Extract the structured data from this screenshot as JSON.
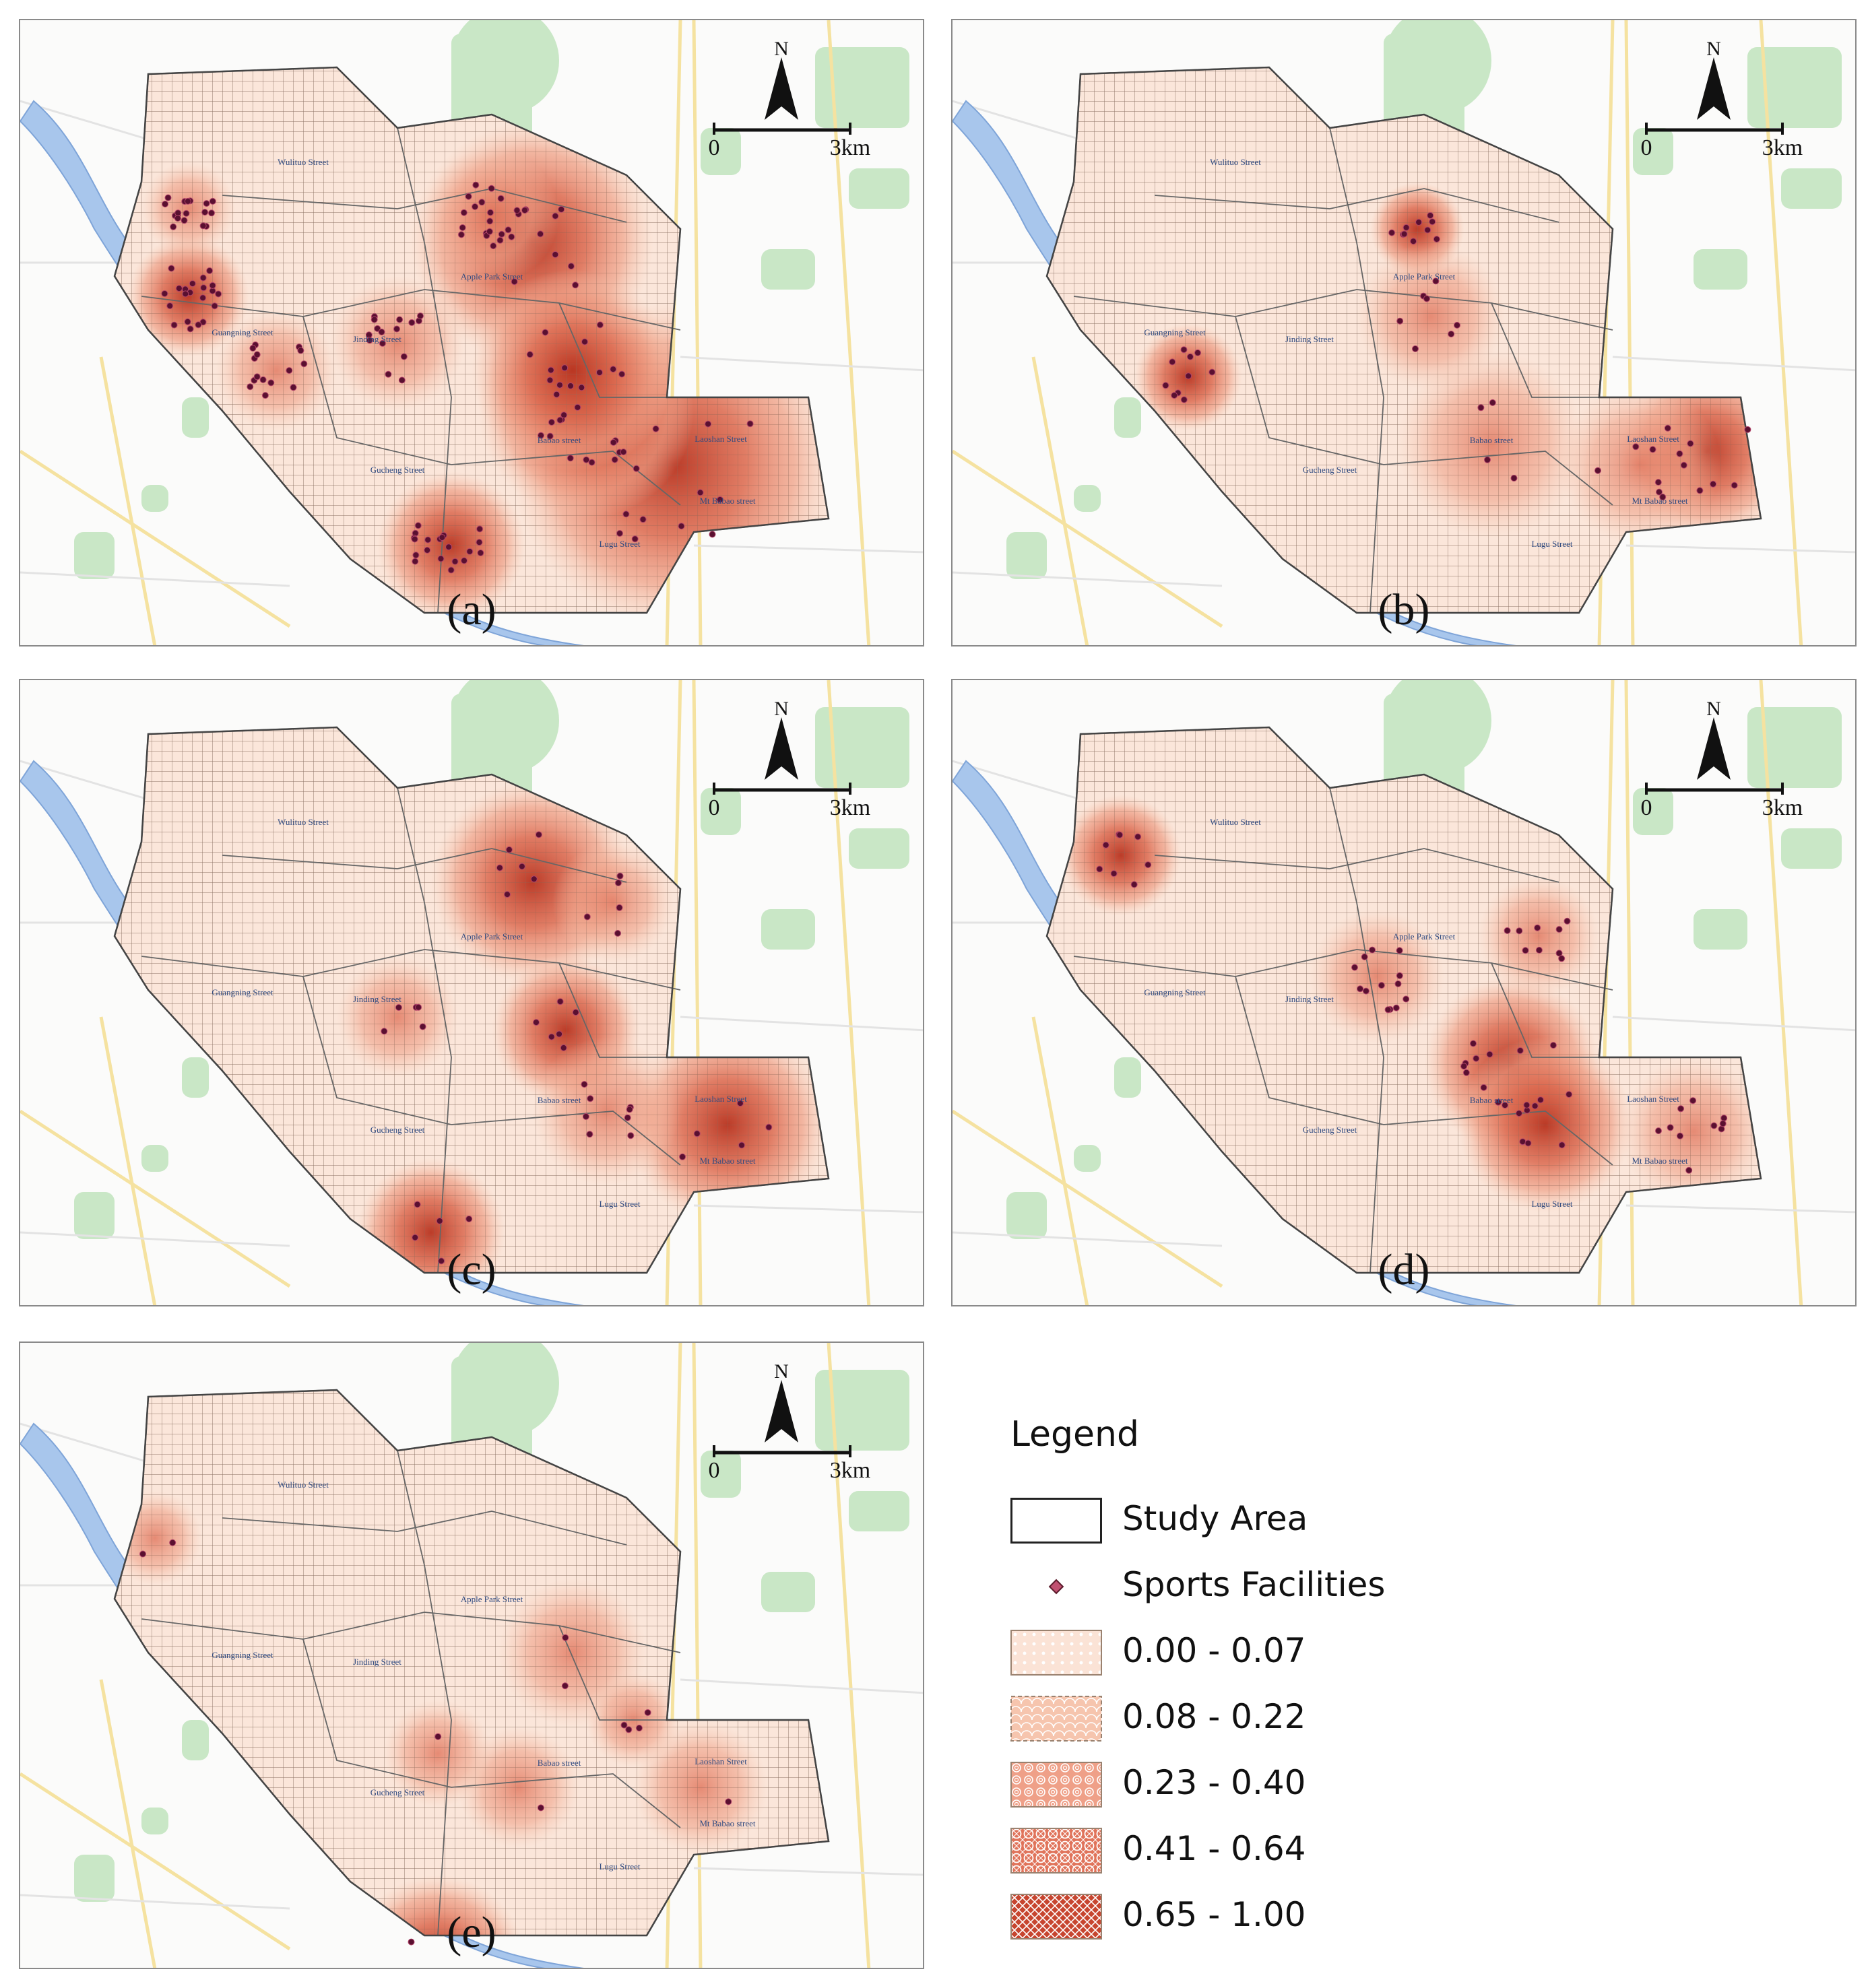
{
  "panels": [
    {
      "id": "a",
      "label": "(a)"
    },
    {
      "id": "b",
      "label": "(b)"
    },
    {
      "id": "c",
      "label": "(c)"
    },
    {
      "id": "d",
      "label": "(d)"
    },
    {
      "id": "e",
      "label": "(e)"
    }
  ],
  "north_arrow": {
    "label": "N"
  },
  "scale_bar": {
    "start": "0",
    "end": "3km"
  },
  "streets": [
    "Wulituo Street",
    "Apple Park Street",
    "Guangning Street",
    "Jinding Street",
    "Babao street",
    "Laoshan Street",
    "Gucheng Street",
    "Mt Babao street",
    "Lugu Street"
  ],
  "legend": {
    "title": "Legend",
    "items": [
      {
        "label": "Study Area",
        "kind": "outline"
      },
      {
        "label": "Sports Facilities",
        "kind": "point",
        "color": "#b23a5a"
      },
      {
        "label": "0.00 - 0.07",
        "kind": "class",
        "color": "#fbe3d6"
      },
      {
        "label": "0.08 - 0.22",
        "kind": "class",
        "color": "#f6c5ae"
      },
      {
        "label": "0.23 - 0.40",
        "kind": "class",
        "color": "#efa088"
      },
      {
        "label": "0.41 - 0.64",
        "kind": "class",
        "color": "#e0735a"
      },
      {
        "label": "0.65 - 1.00",
        "kind": "class",
        "color": "#c7452f"
      }
    ]
  }
}
